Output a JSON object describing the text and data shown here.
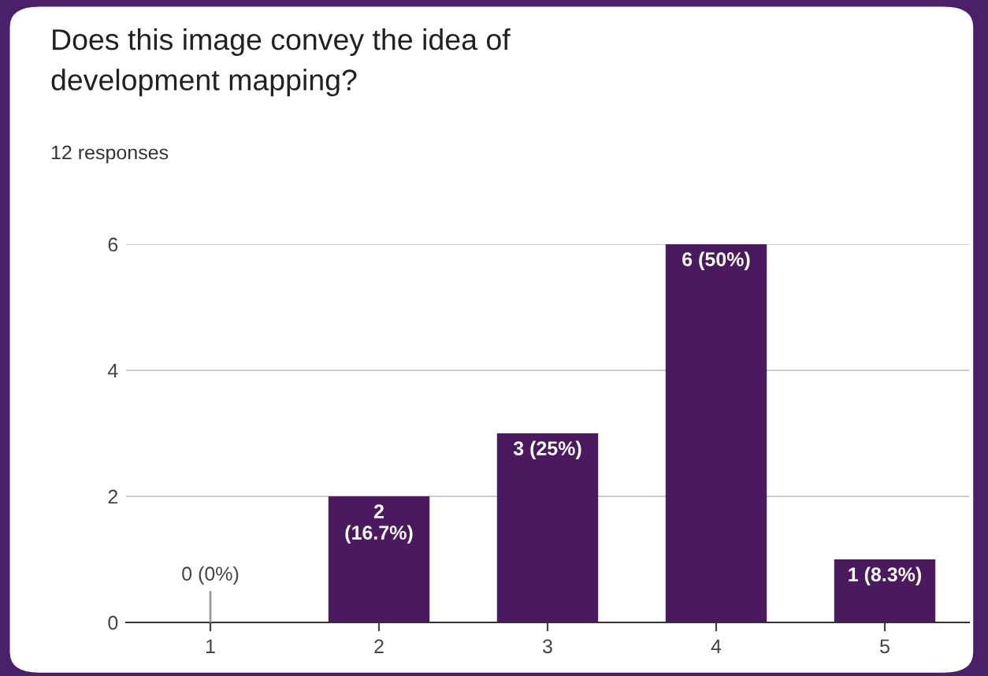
{
  "chart_data": {
    "type": "bar",
    "title": "Does this image convey the idea of\ndevelopment mapping?",
    "subtitle": "12 responses",
    "categories": [
      "1",
      "2",
      "3",
      "4",
      "5"
    ],
    "values": [
      0,
      2,
      3,
      6,
      1
    ],
    "value_labels": [
      "0 (0%)",
      "2\n(16.7%)",
      "3 (25%)",
      "6 (50%)",
      "1 (8.3%)"
    ],
    "color": "#4b1a5e",
    "ylim": [
      0,
      6
    ],
    "yticks": [
      0,
      2,
      4,
      6
    ],
    "grid": "y"
  }
}
